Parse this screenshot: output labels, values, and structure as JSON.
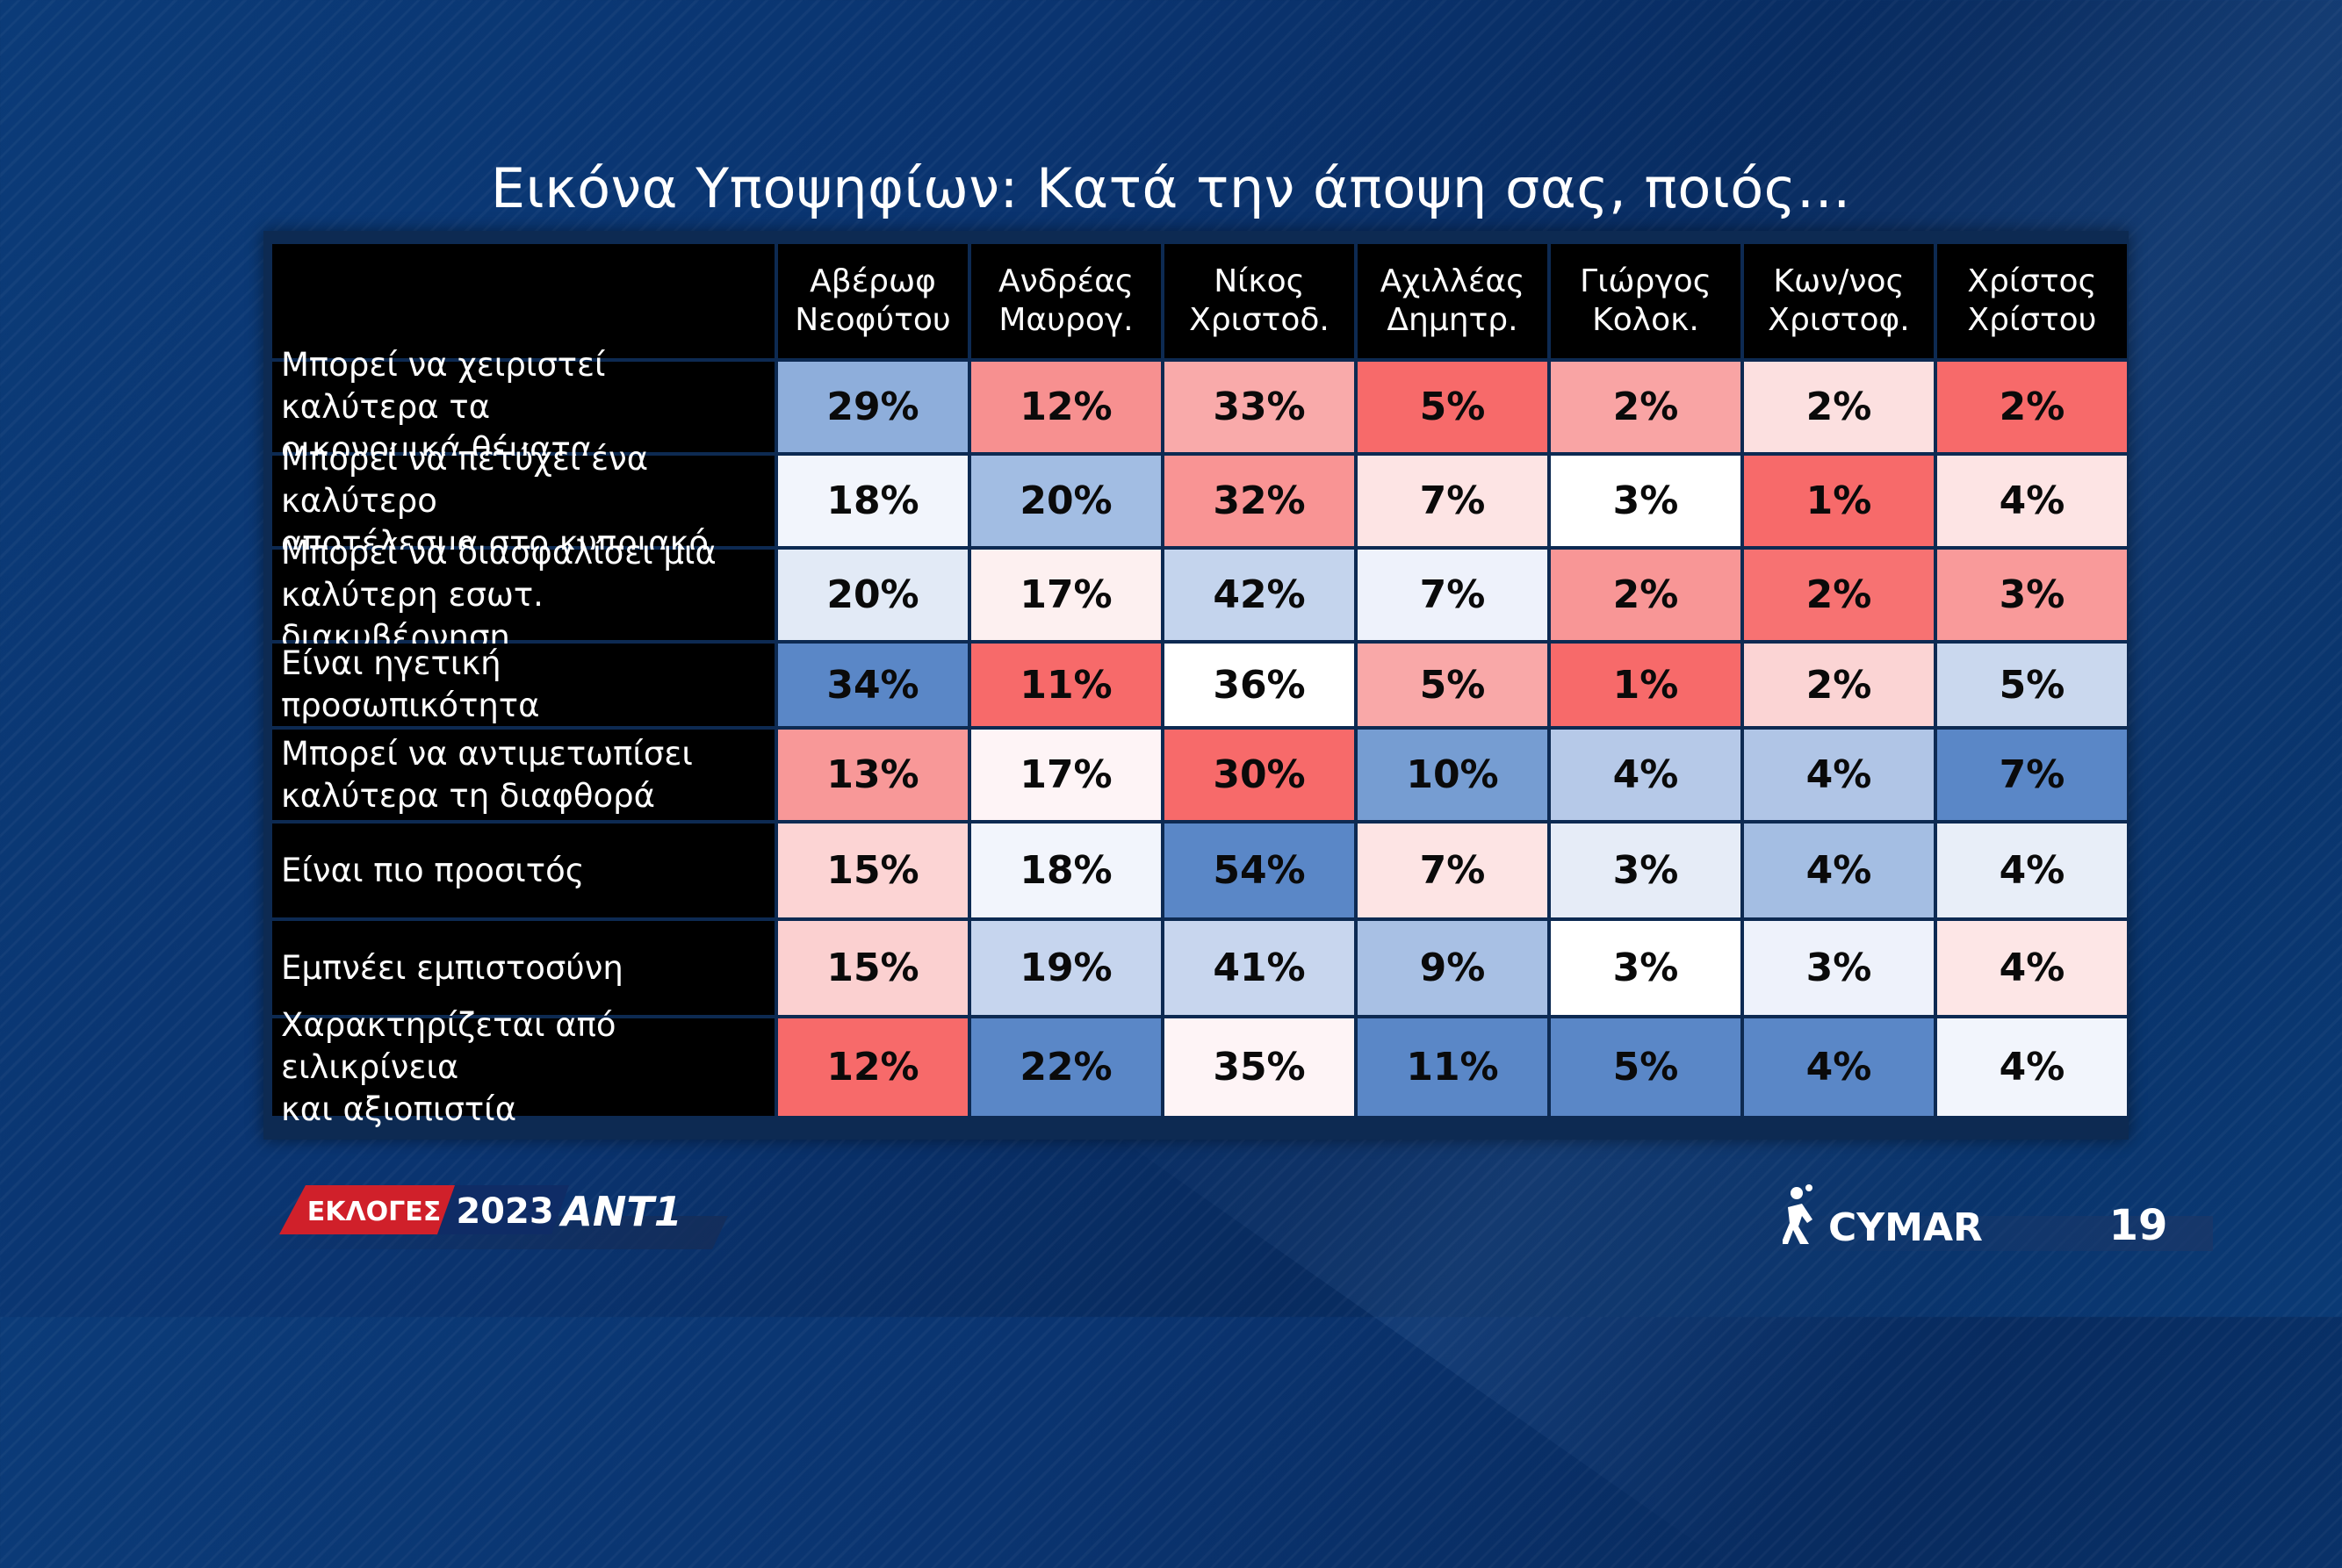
{
  "title": "Εικόνα Υποψηφίων: Κατά την άποψη σας, ποιός…",
  "page_number": "19",
  "footer": {
    "elections_label": "ΕΚΛΟΓΕΣ",
    "elections_year": "2023",
    "channel_logo": "ANT1",
    "pollster_logo": "CYMAR"
  },
  "colors": {
    "red_strong": "#f76a6a",
    "blue_strong": "#5a87c7",
    "header_bg": "#000000",
    "background": "#0a3470"
  },
  "chart_data": {
    "type": "table",
    "title": "Εικόνα Υποψηφίων: Κατά την άποψη σας, ποιός…",
    "columns": [
      {
        "line1": "Αβέρωφ",
        "line2": "Νεοφύτου"
      },
      {
        "line1": "Ανδρέας",
        "line2": "Μαυρογ."
      },
      {
        "line1": "Νίκος",
        "line2": "Χριστοδ."
      },
      {
        "line1": "Αχιλλέας",
        "line2": "Δημητρ."
      },
      {
        "line1": "Γιώργος",
        "line2": "Κολοκ."
      },
      {
        "line1": "Κων/νος",
        "line2": "Χριστοφ."
      },
      {
        "line1": "Χρίστος",
        "line2": "Χρίστου"
      }
    ],
    "rows": [
      {
        "label": "Μπορεί να χειριστεί καλύτερα τα\nοικονομικά θέματα",
        "values": [
          "29%",
          "12%",
          "33%",
          "5%",
          "2%",
          "2%",
          "2%"
        ],
        "colors": [
          "#8eaedb",
          "#f79090",
          "#f9aaaa",
          "#f76a6a",
          "#f9a4a4",
          "#fce0e0",
          "#f76a6a"
        ]
      },
      {
        "label": "Μπορεί να πετύχει ένα καλύτερο\nαποτέλεσμα στο κυπριακό",
        "values": [
          "18%",
          "20%",
          "32%",
          "7%",
          "3%",
          "1%",
          "4%"
        ],
        "colors": [
          "#f2f5fc",
          "#a2bde3",
          "#f99494",
          "#fde4e4",
          "#ffffff",
          "#f76a6a",
          "#fde4e4"
        ]
      },
      {
        "label": "Μπορεί να διασφαλίσει μια\nκαλύτερη εσωτ. διακυβέρνηση",
        "values": [
          "20%",
          "17%",
          "42%",
          "7%",
          "2%",
          "2%",
          "3%"
        ],
        "colors": [
          "#e2eaf6",
          "#fdf0f0",
          "#c4d4ed",
          "#eef2fb",
          "#f89696",
          "#f77272",
          "#f99a9a"
        ]
      },
      {
        "label": "Είναι ηγετική προσωπικότητα",
        "values": [
          "34%",
          "11%",
          "36%",
          "5%",
          "1%",
          "2%",
          "5%"
        ],
        "colors": [
          "#5a87c7",
          "#f76a6a",
          "#ffffff",
          "#f9a8a8",
          "#f76a6a",
          "#fbd4d4",
          "#cad8ee"
        ]
      },
      {
        "label": "Μπορεί να αντιμετωπίσει\nκαλύτερα τη διαφθορά",
        "values": [
          "13%",
          "17%",
          "30%",
          "10%",
          "4%",
          "4%",
          "7%"
        ],
        "colors": [
          "#f89898",
          "#fef4f6",
          "#f76a6a",
          "#769dd2",
          "#b6c9e8",
          "#b0c5e6",
          "#5a87c7"
        ]
      },
      {
        "label": "Είναι πιο προσιτός",
        "values": [
          "15%",
          "18%",
          "54%",
          "7%",
          "3%",
          "4%",
          "4%"
        ],
        "colors": [
          "#fcd4d4",
          "#f2f5fc",
          "#5a87c7",
          "#fde4e4",
          "#e6ecf7",
          "#a4bee3",
          "#e8eef8"
        ]
      },
      {
        "label": "Εμπνέει εμπιστοσύνη",
        "values": [
          "15%",
          "19%",
          "41%",
          "9%",
          "3%",
          "3%",
          "4%"
        ],
        "colors": [
          "#fbd0d0",
          "#c6d5ee",
          "#c8d6ee",
          "#a8c0e4",
          "#ffffff",
          "#eef2fb",
          "#fde6e6"
        ]
      },
      {
        "label": "Χαρακτηρίζεται από ειλικρίνεια\nκαι αξιοπιστία",
        "values": [
          "12%",
          "22%",
          "35%",
          "11%",
          "5%",
          "4%",
          "4%"
        ],
        "colors": [
          "#f76a6a",
          "#5a87c7",
          "#fef4f6",
          "#5a87c7",
          "#5a87c7",
          "#5a87c7",
          "#f2f5fc"
        ]
      }
    ]
  }
}
